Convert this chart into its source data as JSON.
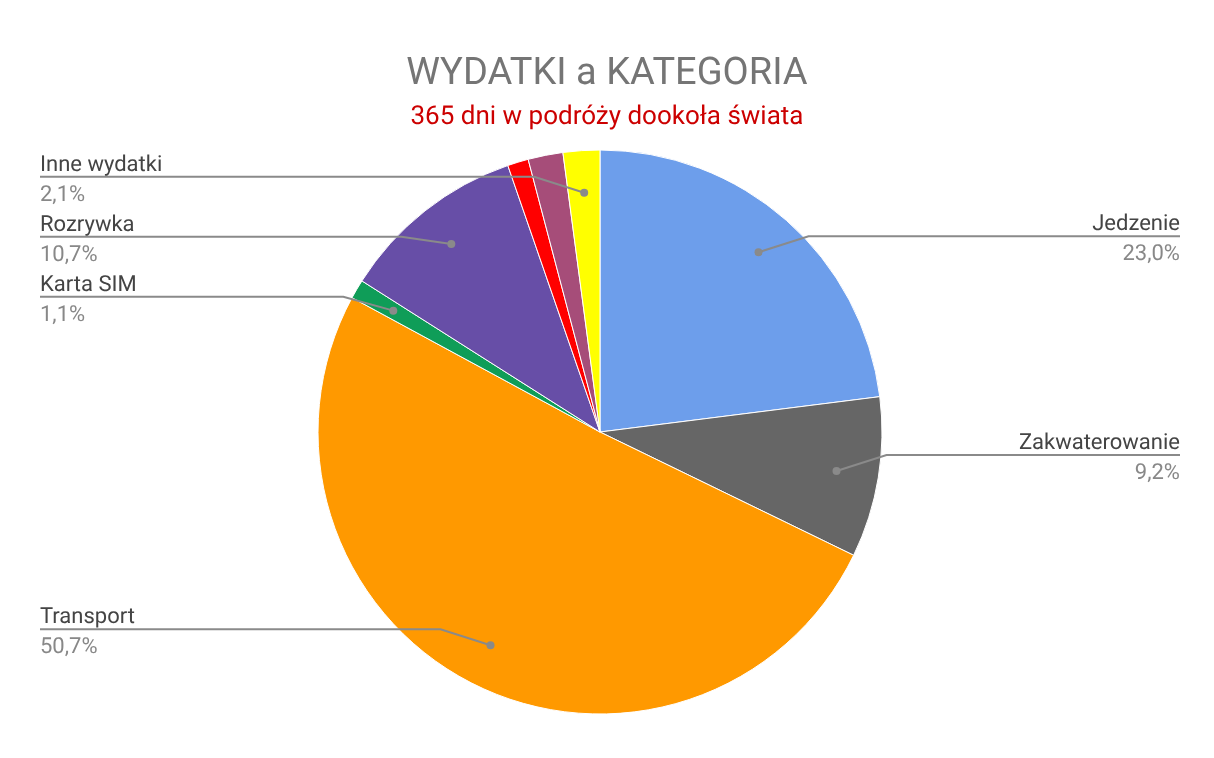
{
  "chart_data": {
    "type": "pie",
    "title": "WYDATKI a KATEGORIA",
    "subtitle": "365 dni w podróży dookoła świata",
    "categories": [
      "Jedzenie",
      "Zakwaterowanie",
      "Transport",
      "Karta SIM",
      "Rozrywka",
      null,
      null,
      "Inne wydatki"
    ],
    "values": [
      23.0,
      9.2,
      50.7,
      1.1,
      10.7,
      1.2,
      2.0,
      2.1
    ],
    "value_labels": [
      "23,0%",
      "9,2%",
      "50,7%",
      "1,1%",
      "10,7%",
      null,
      null,
      "2,1%"
    ],
    "colors": [
      "#6d9eeb",
      "#666666",
      "#ff9900",
      "#0f9d58",
      "#674ea7",
      "#ff0000",
      "#a64d79",
      "#ffff00"
    ]
  }
}
